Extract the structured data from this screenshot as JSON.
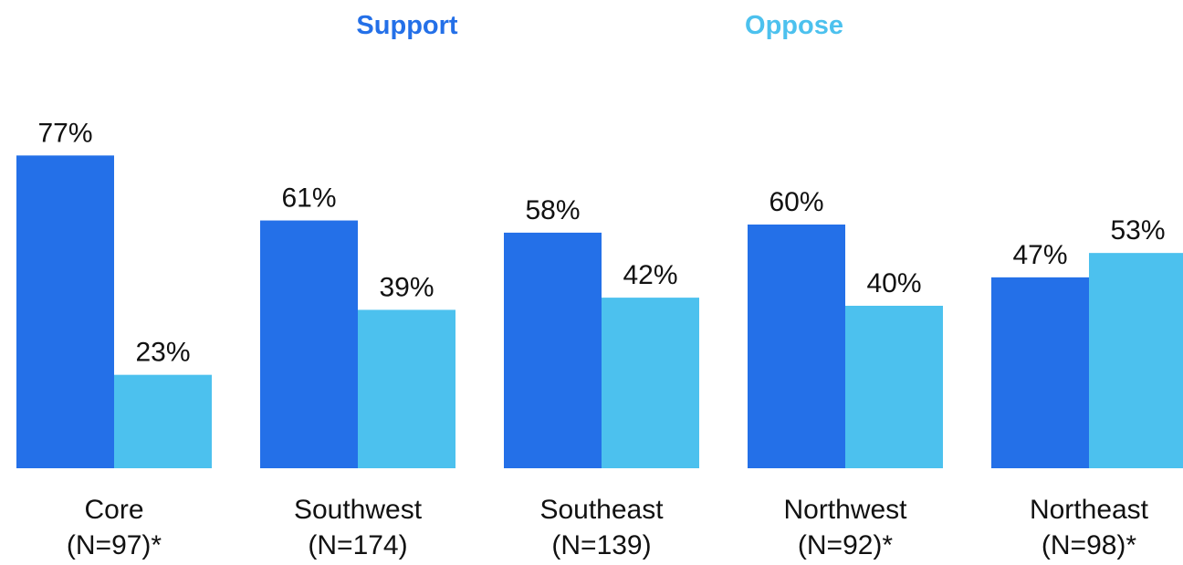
{
  "chart_data": {
    "type": "bar",
    "categories": [
      "Core",
      "Southwest",
      "Southeast",
      "Northwest",
      "Northeast"
    ],
    "category_sublabels": [
      "(N=97)*",
      "(N=174)",
      "(N=139)",
      "(N=92)*",
      "(N=98)*"
    ],
    "series": [
      {
        "name": "Support",
        "values": [
          77,
          61,
          58,
          60,
          47
        ],
        "color": "#2470E8"
      },
      {
        "name": "Oppose",
        "values": [
          23,
          39,
          42,
          40,
          53
        ],
        "color": "#4CC1EE"
      }
    ],
    "value_labels": {
      "Support": [
        "77%",
        "61%",
        "58%",
        "60%",
        "47%"
      ],
      "Oppose": [
        "23%",
        "39%",
        "42%",
        "40%",
        "53%"
      ]
    },
    "ylim": [
      0,
      100
    ],
    "grid": false,
    "legend_position": "top-center"
  }
}
